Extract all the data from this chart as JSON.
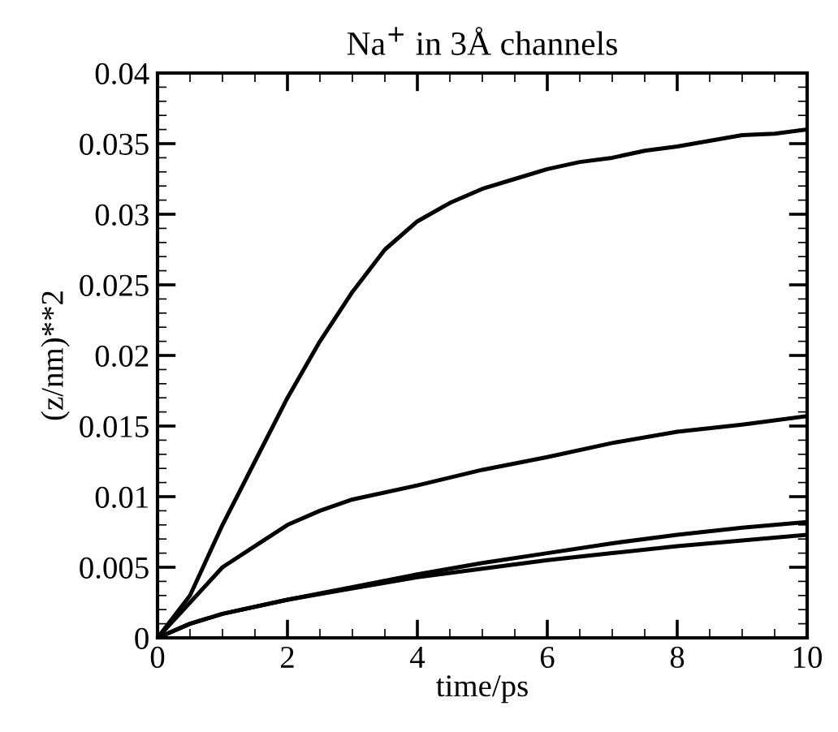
{
  "chart_data": {
    "type": "line",
    "title": "Na$^{+}$ in 3Å channels",
    "xlabel": "time/ps",
    "ylabel": "(z/nm)**2",
    "xlim": [
      0,
      10
    ],
    "ylim": [
      0,
      0.04
    ],
    "xticks": [
      0,
      2,
      4,
      6,
      8,
      10
    ],
    "yticks": [
      0,
      0.005,
      0.01,
      0.015,
      0.02,
      0.025,
      0.03,
      0.035,
      0.04
    ],
    "grid": false,
    "legend": false,
    "marker": "none",
    "line_style": "solid",
    "series": [
      {
        "color": "#000000",
        "x": [
          0,
          0.5,
          1,
          1.5,
          2,
          2.5,
          3,
          3.5,
          4,
          4.5,
          5,
          5.5,
          6,
          6.5,
          7,
          7.5,
          8,
          8.5,
          9,
          9.5,
          10
        ],
        "values": [
          0,
          0.003,
          0.008,
          0.0125,
          0.017,
          0.021,
          0.0245,
          0.0275,
          0.0295,
          0.0308,
          0.0318,
          0.0325,
          0.0332,
          0.0337,
          0.034,
          0.0345,
          0.0348,
          0.0352,
          0.0356,
          0.0357,
          0.036
        ]
      },
      {
        "color": "#000000",
        "x": [
          0,
          0.5,
          1,
          1.5,
          2,
          2.5,
          3,
          4,
          5,
          6,
          7,
          8,
          9,
          10
        ],
        "values": [
          0,
          0.0025,
          0.005,
          0.0065,
          0.008,
          0.009,
          0.0098,
          0.0108,
          0.0119,
          0.0128,
          0.0138,
          0.0146,
          0.0151,
          0.0157
        ]
      },
      {
        "color": "#000000",
        "x": [
          0,
          0.5,
          1,
          2,
          3,
          4,
          5,
          6,
          7,
          8,
          9,
          10
        ],
        "values": [
          0,
          0.001,
          0.0017,
          0.0027,
          0.0036,
          0.0045,
          0.0053,
          0.006,
          0.0067,
          0.0073,
          0.0078,
          0.0082
        ]
      },
      {
        "color": "#000000",
        "x": [
          0,
          0.5,
          1,
          2,
          3,
          4,
          5,
          6,
          7,
          8,
          9,
          10
        ],
        "values": [
          0,
          0.001,
          0.0017,
          0.0027,
          0.0035,
          0.0043,
          0.0049,
          0.0055,
          0.006,
          0.0065,
          0.0069,
          0.0073
        ]
      }
    ]
  }
}
